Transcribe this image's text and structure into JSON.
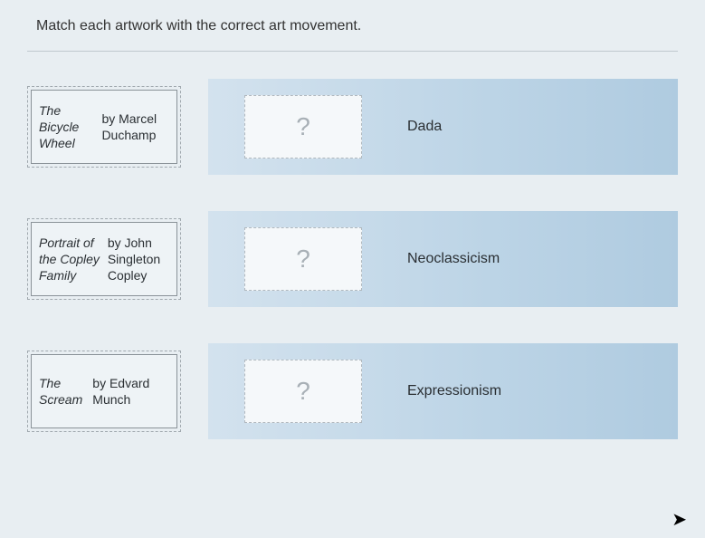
{
  "instruction": "Match each artwork with the correct art movement.",
  "rows": [
    {
      "artwork_html": "<span class='italic'>The Bicycle Wheel</span> by Marcel Duchamp",
      "drop_placeholder": "?",
      "movement": "Dada"
    },
    {
      "artwork_html": "<span class='italic'>Portrait of the Copley Family</span> by John Singleton Copley",
      "drop_placeholder": "?",
      "movement": "Neoclassicism"
    },
    {
      "artwork_html": "<span class='italic'>The Scream</span> by Edvard Munch",
      "drop_placeholder": "?",
      "movement": "Expressionism"
    }
  ],
  "colors": {
    "background": "#e8eef2",
    "card_bg": "#eef3f6",
    "panel_gradient_start": "#d3e2ee",
    "panel_gradient_end": "#afcbe0",
    "drop_bg": "#f5f8fa",
    "text": "#2a2f33",
    "placeholder": "#a8b0b6"
  }
}
